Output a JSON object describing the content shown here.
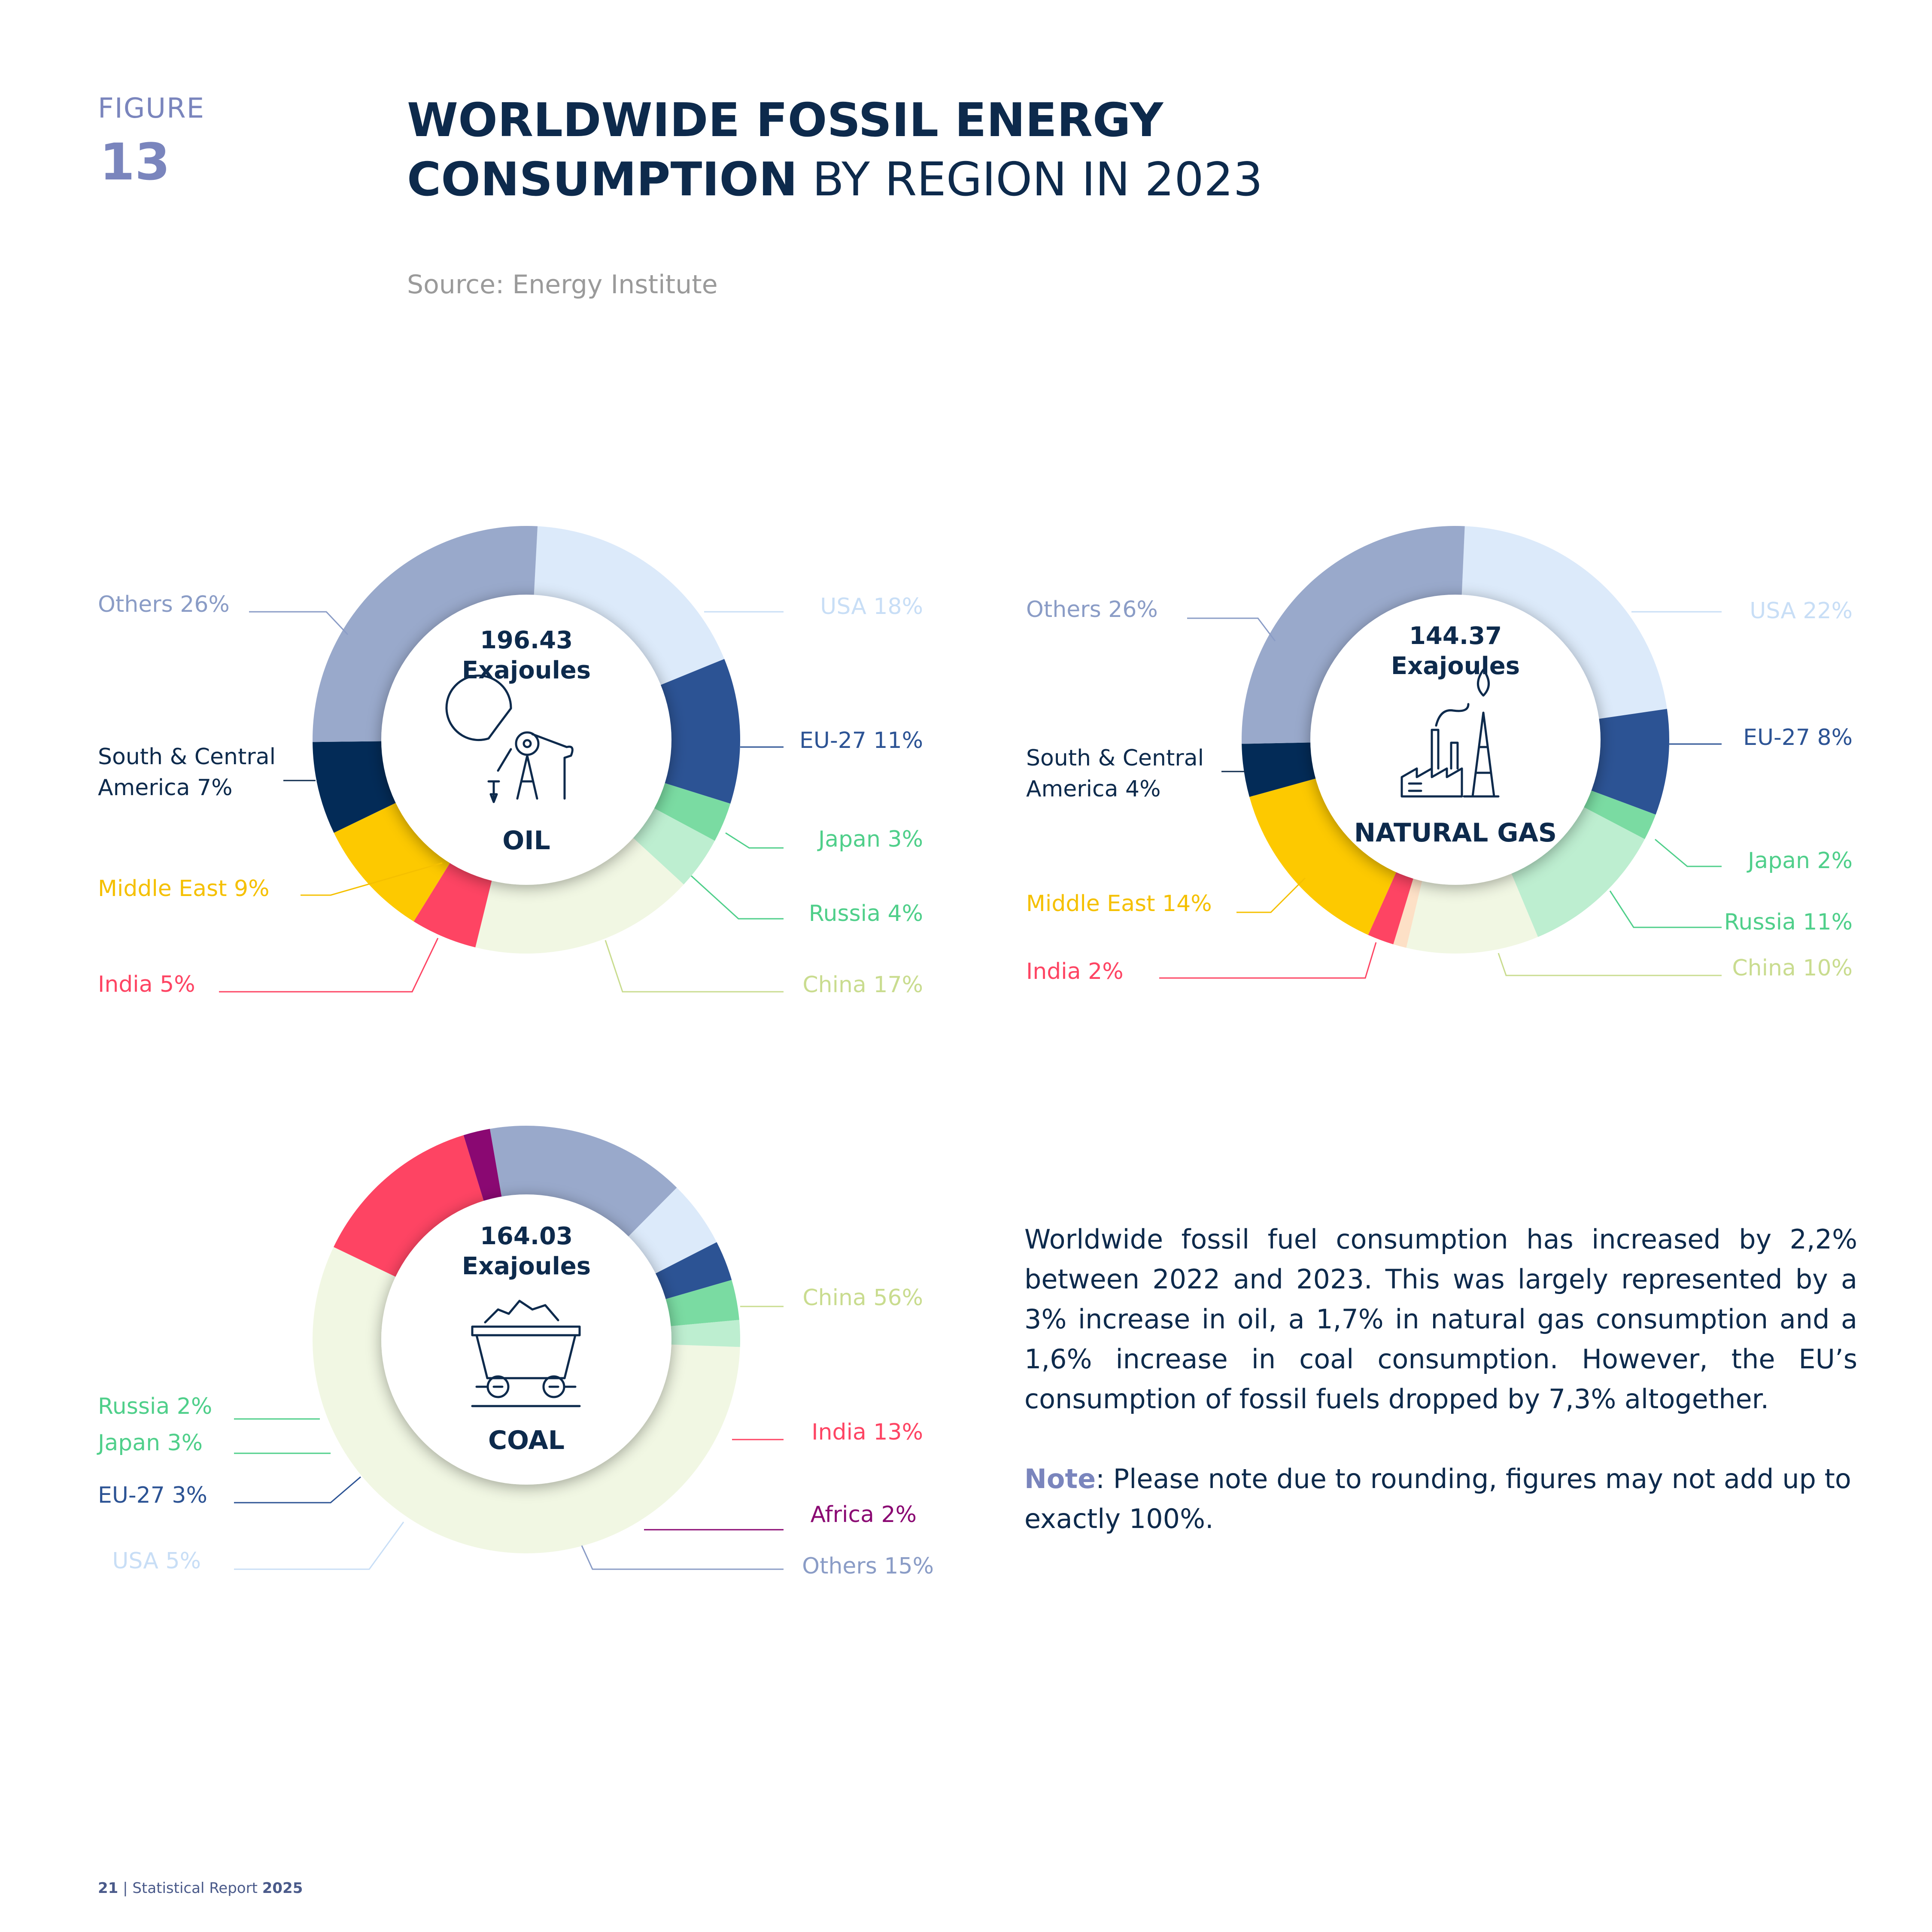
{
  "header": {
    "figure_label": "FIGURE",
    "figure_number": "13",
    "title_line1": "WORLDWIDE FOSSIL ENERGY",
    "title_bold2": "CONSUMPTION",
    "title_light2": " BY REGION IN 2023",
    "source": "Source: Energy Institute"
  },
  "body": {
    "paragraph": "Worldwide fossil fuel consumption has increased by 2,2% between 2022 and 2023. This was largely represented by a 3% increase in oil, a 1,7% in natural gas consumption and a 1,6% increase in coal consumption. However, the EU’s consumption of fossil fuels dropped by 7,3% altogether.",
    "note_key": "Note",
    "note_text": ": Please note due to rounding, figures may not add up to exactly 100%."
  },
  "footer": {
    "page": "21",
    "separator": " | ",
    "report": "Statistical Report ",
    "year": "2025"
  },
  "colors": {
    "USA": "#dceafa",
    "EU-27": "#2c5394",
    "Japan": "#7adba2",
    "Russia": "#bdeed0",
    "China": "#f1f7e3",
    "India": "#fe4463",
    "Middle East": "#fdc900",
    "South & Central America": "#032b57",
    "Others": "#99a9cb",
    "Africa": "#8a0872",
    "Small": "#fde0c6"
  },
  "chart_data": [
    {
      "type": "pie",
      "name": "OIL",
      "total_value": "196.43",
      "total_unit": "Exajoules",
      "icon": "oil-pump-icon",
      "slices": [
        {
          "label": "USA",
          "value": 18
        },
        {
          "label": "EU-27",
          "value": 11
        },
        {
          "label": "Japan",
          "value": 3
        },
        {
          "label": "Russia",
          "value": 4
        },
        {
          "label": "China",
          "value": 17
        },
        {
          "label": "India",
          "value": 5
        },
        {
          "label": "Middle East",
          "value": 9
        },
        {
          "label": "South & Central America",
          "value": 7
        },
        {
          "label": "Others",
          "value": 26
        }
      ],
      "legend": [
        {
          "text": "USA 18%",
          "color": "#c8def6"
        },
        {
          "text": "EU-27 11%",
          "color": "#2c5394"
        },
        {
          "text": "Japan 3%",
          "color": "#4fcf8a"
        },
        {
          "text": "Russia 4%",
          "color": "#4fcf8a"
        },
        {
          "text": "China 17%",
          "color": "#c9dc8f"
        },
        {
          "text": "India 5%",
          "color": "#fe4463"
        },
        {
          "text": "Middle East 9%",
          "color": "#f5c000"
        },
        {
          "text": "South & Central",
          "text2": "America 7%",
          "color": "#0d2a4c"
        },
        {
          "text": "Others 26%",
          "color": "#8a9cc6"
        }
      ]
    },
    {
      "type": "pie",
      "name": "NATURAL GAS",
      "total_value": "144.37",
      "total_unit": "Exajoules",
      "icon": "gas-plant-icon",
      "slices": [
        {
          "label": "USA",
          "value": 22
        },
        {
          "label": "EU-27",
          "value": 8
        },
        {
          "label": "Japan",
          "value": 2
        },
        {
          "label": "Russia",
          "value": 11
        },
        {
          "label": "China",
          "value": 10
        },
        {
          "label": "Small",
          "value": 1
        },
        {
          "label": "India",
          "value": 2
        },
        {
          "label": "Middle East",
          "value": 14
        },
        {
          "label": "South & Central America",
          "value": 4
        },
        {
          "label": "Others",
          "value": 26
        }
      ],
      "legend": [
        {
          "text": "USA 22%",
          "color": "#c8def6"
        },
        {
          "text": "EU-27 8%",
          "color": "#2c5394"
        },
        {
          "text": "Japan 2%",
          "color": "#4fcf8a"
        },
        {
          "text": "Russia 11%",
          "color": "#4fcf8a"
        },
        {
          "text": "China 10%",
          "color": "#c9dc8f"
        },
        {
          "text": "India 2%",
          "color": "#fe4463"
        },
        {
          "text": "Middle East 14%",
          "color": "#f5c000"
        },
        {
          "text": "South & Central",
          "text2": "America 4%",
          "color": "#0d2a4c"
        },
        {
          "text": "Others 26%",
          "color": "#8a9cc6"
        }
      ]
    },
    {
      "type": "pie",
      "name": "COAL",
      "total_value": "164.03",
      "total_unit": "Exajoules",
      "icon": "coal-cart-icon",
      "slices": [
        {
          "label": "China",
          "value": 56
        },
        {
          "label": "India",
          "value": 13
        },
        {
          "label": "Africa",
          "value": 2
        },
        {
          "label": "Others",
          "value": 15
        },
        {
          "label": "USA",
          "value": 5
        },
        {
          "label": "EU-27",
          "value": 3
        },
        {
          "label": "Japan",
          "value": 3
        },
        {
          "label": "Russia",
          "value": 2
        }
      ],
      "legend": [
        {
          "text": "China 56%",
          "color": "#c9dc8f"
        },
        {
          "text": "India 13%",
          "color": "#fe4463"
        },
        {
          "text": "Africa 2%",
          "color": "#8a0872"
        },
        {
          "text": "Others 15%",
          "color": "#8a9cc6"
        },
        {
          "text": "USA 5%",
          "color": "#c8def6"
        },
        {
          "text": "EU-27 3%",
          "color": "#2c5394"
        },
        {
          "text": "Japan 3%",
          "color": "#4fcf8a"
        },
        {
          "text": "Russia 2%",
          "color": "#4fcf8a"
        }
      ]
    }
  ]
}
